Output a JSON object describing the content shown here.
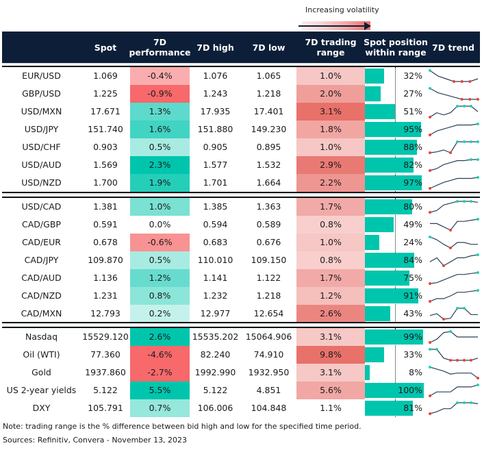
{
  "legend": {
    "label": "Increasing volatility",
    "icon": "arrow-right-icon"
  },
  "header": {
    "columns": [
      "",
      "Spot",
      "7D\nperformance",
      "7D high",
      "7D low",
      "7D trading\nrange",
      "Spot position\nwithin range",
      "7D trend"
    ]
  },
  "colors": {
    "header_bg": "#0d1f38",
    "bar": "#00c5ad",
    "spark_line": "#2b3f55",
    "spark_high": "#1fcfb8",
    "spark_low": "#e8423c"
  },
  "sections": [
    {
      "rows": [
        {
          "name": "EUR/USD",
          "spot": "1.069",
          "perf": "-0.4%",
          "perf_val": -0.4,
          "high": "1.076",
          "low": "1.065",
          "range": "1.0%",
          "range_val": 1.0,
          "pos": "32%",
          "pos_val": 0.32,
          "trend": [
            7,
            5,
            4,
            3,
            3,
            3,
            4
          ]
        },
        {
          "name": "GBP/USD",
          "spot": "1.225",
          "perf": "-0.9%",
          "perf_val": -0.9,
          "high": "1.243",
          "low": "1.218",
          "range": "2.0%",
          "range_val": 2.0,
          "pos": "27%",
          "pos_val": 0.27,
          "trend": [
            7,
            5,
            4,
            3,
            2,
            2,
            2
          ]
        },
        {
          "name": "USD/MXN",
          "spot": "17.671",
          "perf": "1.3%",
          "perf_val": 1.3,
          "high": "17.935",
          "low": "17.401",
          "range": "3.1%",
          "range_val": 3.1,
          "pos": "51%",
          "pos_val": 0.51,
          "trend": [
            2,
            4,
            3,
            4,
            7,
            7,
            7,
            4.5
          ]
        },
        {
          "name": "USD/JPY",
          "spot": "151.740",
          "perf": "1.6%",
          "perf_val": 1.6,
          "high": "151.880",
          "low": "149.230",
          "range": "1.8%",
          "range_val": 1.8,
          "pos": "95%",
          "pos_val": 0.95,
          "trend": [
            1,
            3,
            4,
            5,
            6,
            6,
            6,
            6.5
          ]
        },
        {
          "name": "USD/CHF",
          "spot": "0.903",
          "perf": "0.5%",
          "perf_val": 0.5,
          "high": "0.905",
          "low": "0.895",
          "range": "1.0%",
          "range_val": 1.0,
          "pos": "88%",
          "pos_val": 0.88,
          "trend": [
            1,
            1.5,
            2.5,
            1,
            7,
            7,
            7,
            7
          ]
        },
        {
          "name": "USD/AUD",
          "spot": "1.569",
          "perf": "2.3%",
          "perf_val": 2.3,
          "high": "1.577",
          "low": "1.532",
          "range": "2.9%",
          "range_val": 2.9,
          "pos": "82%",
          "pos_val": 0.82,
          "trend": [
            1,
            2,
            4,
            5,
            6,
            6,
            6.5,
            6.5
          ]
        },
        {
          "name": "USD/NZD",
          "spot": "1.700",
          "perf": "1.9%",
          "perf_val": 1.9,
          "high": "1.701",
          "low": "1.664",
          "range": "2.2%",
          "range_val": 2.2,
          "pos": "97%",
          "pos_val": 0.97,
          "trend": [
            1,
            2.5,
            4,
            5,
            6,
            6,
            6,
            6.5
          ]
        }
      ]
    },
    {
      "rows": [
        {
          "name": "USD/CAD",
          "spot": "1.381",
          "perf": "1.0%",
          "perf_val": 1.0,
          "high": "1.385",
          "low": "1.363",
          "range": "1.7%",
          "range_val": 1.7,
          "pos": "80%",
          "pos_val": 0.8,
          "trend": [
            1,
            2,
            5,
            6,
            7,
            7,
            7,
            6.5
          ]
        },
        {
          "name": "CAD/GBP",
          "spot": "0.591",
          "perf": "0.0%",
          "perf_val": 0.0,
          "high": "0.594",
          "low": "0.589",
          "range": "0.8%",
          "range_val": 0.8,
          "pos": "49%",
          "pos_val": 0.49,
          "trend": [
            4,
            4,
            2.5,
            1,
            5,
            5,
            5.5,
            6
          ]
        },
        {
          "name": "CAD/EUR",
          "spot": "0.678",
          "perf": "-0.6%",
          "perf_val": -0.6,
          "high": "0.683",
          "low": "0.676",
          "range": "1.0%",
          "range_val": 1.0,
          "pos": "24%",
          "pos_val": 0.24,
          "trend": [
            7,
            5.5,
            3,
            1,
            4,
            4,
            3,
            3
          ]
        },
        {
          "name": "CAD/JPY",
          "spot": "109.870",
          "perf": "0.5%",
          "perf_val": 0.5,
          "high": "110.010",
          "low": "109.150",
          "range": "0.8%",
          "range_val": 0.8,
          "pos": "84%",
          "pos_val": 0.84,
          "trend": [
            3,
            5,
            1,
            3,
            5,
            5,
            6,
            6.5
          ]
        },
        {
          "name": "CAD/AUD",
          "spot": "1.136",
          "perf": "1.2%",
          "perf_val": 1.2,
          "high": "1.141",
          "low": "1.122",
          "range": "1.7%",
          "range_val": 1.7,
          "pos": "75%",
          "pos_val": 0.75,
          "trend": [
            1,
            1.5,
            3,
            4.5,
            6,
            6,
            6.5,
            7
          ]
        },
        {
          "name": "CAD/NZD",
          "spot": "1.231",
          "perf": "0.8%",
          "perf_val": 0.8,
          "high": "1.232",
          "low": "1.218",
          "range": "1.2%",
          "range_val": 1.2,
          "pos": "91%",
          "pos_val": 0.91,
          "trend": [
            1,
            2.5,
            2.5,
            4,
            6,
            6,
            6.5,
            7
          ]
        },
        {
          "name": "CAD/MXN",
          "spot": "12.793",
          "perf": "0.2%",
          "perf_val": 0.2,
          "high": "12.977",
          "low": "12.654",
          "range": "2.6%",
          "range_val": 2.6,
          "pos": "43%",
          "pos_val": 0.43,
          "trend": [
            3,
            4,
            1,
            1.5,
            7,
            7,
            3.5,
            3.5
          ]
        }
      ]
    },
    {
      "rows": [
        {
          "name": "Nasdaq",
          "spot": "15529.120",
          "perf": "2.6%",
          "perf_val": 2.6,
          "high": "15535.202",
          "low": "15064.906",
          "range": "3.1%",
          "range_val": 3.1,
          "pos": "99%",
          "pos_val": 0.99,
          "trend": [
            1,
            2.5,
            5.5,
            6,
            3.5,
            3.5,
            3.5,
            3.5
          ]
        },
        {
          "name": "Oil (WTI)",
          "spot": "77.360",
          "perf": "-4.6%",
          "perf_val": -4.6,
          "high": "82.240",
          "low": "74.910",
          "range": "9.8%",
          "range_val": 9.8,
          "pos": "33%",
          "pos_val": 0.33,
          "trend": [
            7,
            7,
            3,
            2,
            2,
            2,
            2,
            3
          ]
        },
        {
          "name": "Gold",
          "spot": "1937.860",
          "perf": "-2.7%",
          "perf_val": -2.7,
          "high": "1992.990",
          "low": "1932.950",
          "range": "3.1%",
          "range_val": 3.1,
          "pos": "8%",
          "pos_val": 0.08,
          "trend": [
            7,
            6,
            5,
            3.5,
            4,
            4,
            4,
            1.5
          ]
        },
        {
          "name": "US 2-year yields",
          "spot": "5.122",
          "perf": "5.5%",
          "perf_val": 5.5,
          "high": "5.122",
          "low": "4.851",
          "range": "5.6%",
          "range_val": 5.6,
          "pos": "100%",
          "pos_val": 1.0,
          "trend": [
            1,
            3,
            3,
            3,
            5.5,
            5.5,
            5.5,
            6.5
          ]
        },
        {
          "name": "DXY",
          "spot": "105.791",
          "perf": "0.7%",
          "perf_val": 0.7,
          "high": "106.006",
          "low": "104.848",
          "range": "1.1%",
          "range_val": 1.1,
          "pos": "81%",
          "pos_val": 0.81,
          "trend": [
            1,
            2,
            3.5,
            3.5,
            6.5,
            6.5,
            6.5,
            6
          ]
        }
      ]
    }
  ],
  "footer": {
    "note": "Note: trading range is the % difference between bid high and low for the specified time period.",
    "sources": "Sources: Refinitiv, Convera - November 13, 2023"
  }
}
